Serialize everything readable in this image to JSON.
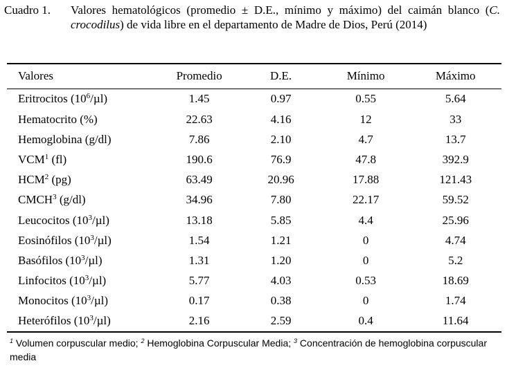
{
  "caption": {
    "label": "Cuadro 1.",
    "text_before_italic": "Valores hematológicos (promedio ± D.E., mínimo y máximo) del caimán blanco (",
    "italic_name": "C. crocodilus",
    "text_after_italic": ") de vida libre en el departamento de Madre de Dios, Perú (2014)"
  },
  "table": {
    "headers": [
      "Valores",
      "Promedio",
      "D.E.",
      "Mínimo",
      "Máximo"
    ],
    "rows": [
      {
        "name": "Eritrocitos (10",
        "sup": "6",
        "unit": "/µl)",
        "mean": "1.45",
        "sd": "0.97",
        "min": "0.55",
        "max": "5.64"
      },
      {
        "name": "Hematocrito (%)",
        "sup": "",
        "unit": "",
        "mean": "22.63",
        "sd": "4.16",
        "min": "12",
        "max": "33"
      },
      {
        "name": "Hemoglobina (g/dl)",
        "sup": "",
        "unit": "",
        "mean": "7.86",
        "sd": "2.10",
        "min": "4.7",
        "max": "13.7"
      },
      {
        "name": "VCM",
        "sup": "1",
        "unit": " (fl)",
        "mean": "190.6",
        "sd": "76.9",
        "min": "47.8",
        "max": "392.9"
      },
      {
        "name": "HCM",
        "sup": "2",
        "unit": " (pg)",
        "mean": "63.49",
        "sd": "20.96",
        "min": "17.88",
        "max": "121.43"
      },
      {
        "name": "CMCH",
        "sup": "3",
        "unit": " (g/dl)",
        "mean": "34.96",
        "sd": "7.80",
        "min": "22.17",
        "max": "59.52"
      },
      {
        "name": "Leucocitos (10",
        "sup": "3",
        "unit": "/µl)",
        "mean": "13.18",
        "sd": "5.85",
        "min": "4.4",
        "max": "25.96"
      },
      {
        "name": "Eosinófilos (10",
        "sup": "3",
        "unit": "/µl)",
        "mean": "1.54",
        "sd": "1.21",
        "min": "0",
        "max": "4.74"
      },
      {
        "name": "Basófilos (10",
        "sup": "3",
        "unit": "/µl)",
        "mean": "1.31",
        "sd": "1.20",
        "min": "0",
        "max": "5.2"
      },
      {
        "name": "Linfocitos (10",
        "sup": "3",
        "unit": "/µl)",
        "mean": "5.77",
        "sd": "4.03",
        "min": "0.53",
        "max": "18.69"
      },
      {
        "name": "Monocitos (10",
        "sup": "3",
        "unit": "/µl)",
        "mean": "0.17",
        "sd": "0.38",
        "min": "0",
        "max": "1.74"
      },
      {
        "name": "Heterófilos (10",
        "sup": "3",
        "unit": "/µl)",
        "mean": "2.16",
        "sd": "2.59",
        "min": "0.4",
        "max": "11.64"
      }
    ]
  },
  "footnote": {
    "sup1": "1",
    "text1": " Volumen corpuscular medio; ",
    "sup2": "2",
    "text2": " Hemoglobina Corpuscular Media; ",
    "sup3": "3",
    "text3": " Concentración de hemoglobina corpuscular media"
  }
}
